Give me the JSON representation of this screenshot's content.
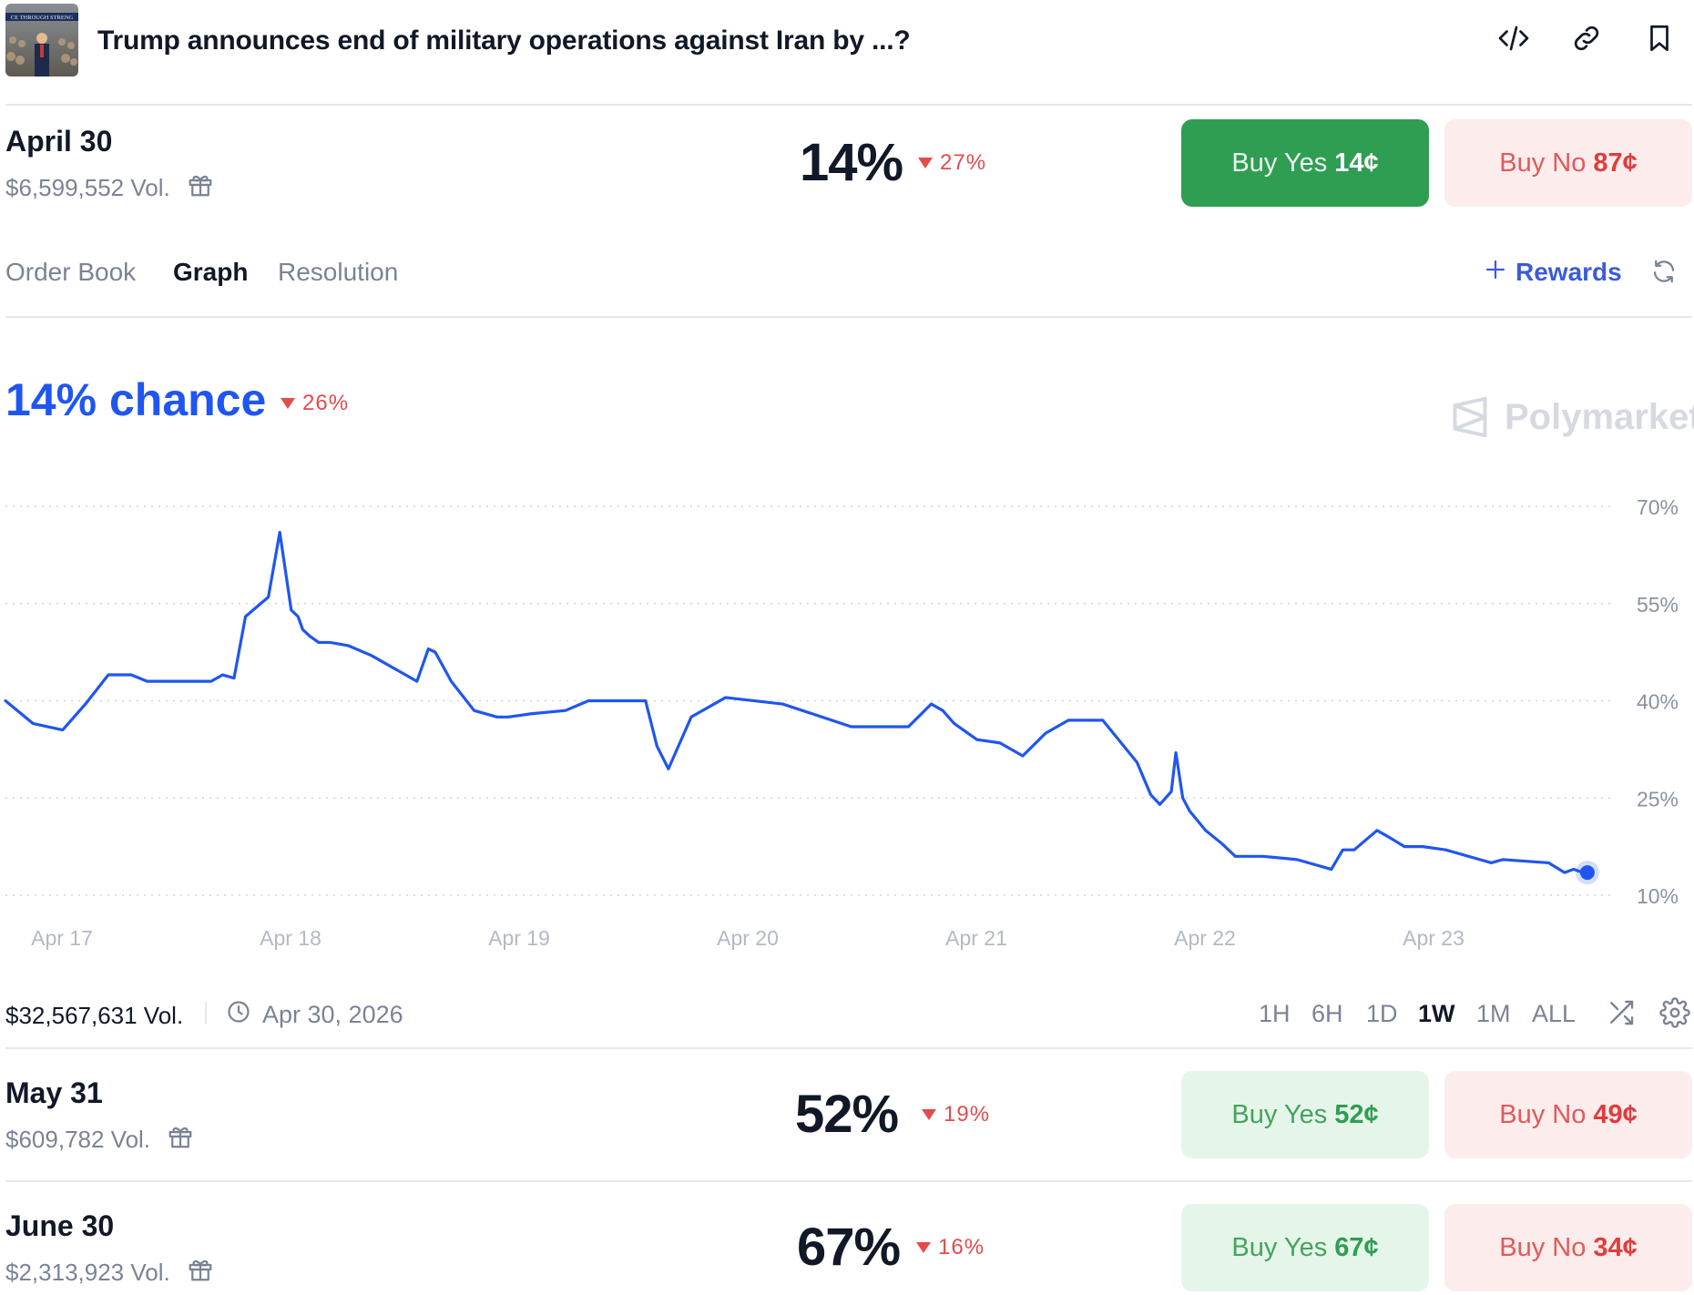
{
  "header": {
    "title": "Trump announces end of military operations against Iran by ...?",
    "thumbnail_caption": "CE THROUGH STRENG",
    "icons": [
      "code-embed-icon",
      "link-icon",
      "bookmark-icon"
    ]
  },
  "outcomes": [
    {
      "date": "April 30",
      "volume": "$6,599,552 Vol.",
      "percent": "14%",
      "change": "27%",
      "yes_label": "Buy Yes",
      "yes_price": "14¢",
      "no_label": "Buy No",
      "no_price": "87¢"
    },
    {
      "date": "May 31",
      "volume": "$609,782 Vol.",
      "percent": "52%",
      "change": "19%",
      "yes_label": "Buy Yes",
      "yes_price": "52¢",
      "no_label": "Buy No",
      "no_price": "49¢"
    },
    {
      "date": "June 30",
      "volume": "$2,313,923 Vol.",
      "percent": "67%",
      "change": "16%",
      "yes_label": "Buy Yes",
      "yes_price": "67¢",
      "no_label": "Buy No",
      "no_price": "34¢"
    }
  ],
  "tabs": [
    {
      "label": "Order Book",
      "active": false
    },
    {
      "label": "Graph",
      "active": true
    },
    {
      "label": "Resolution",
      "active": false
    }
  ],
  "rewards_label": "Rewards",
  "chance": {
    "text": "14% chance",
    "change": "26%"
  },
  "brand": "Polymarket",
  "stats": {
    "total_volume": "$32,567,631 Vol.",
    "end_date": "Apr 30, 2026"
  },
  "ranges": [
    {
      "label": "1H",
      "active": false
    },
    {
      "label": "6H",
      "active": false
    },
    {
      "label": "1D",
      "active": false
    },
    {
      "label": "1W",
      "active": true
    },
    {
      "label": "1M",
      "active": false
    },
    {
      "label": "ALL",
      "active": false
    }
  ],
  "colors": {
    "line": "#1f56f0",
    "buy_yes_solid": "#2f9e53",
    "buy_yes_light": "#e6f5ea",
    "buy_no_light": "#fcecec",
    "down_red": "#e24c4c",
    "rewards_blue": "#3b5bdb"
  },
  "chart_data": {
    "type": "line",
    "x_tick_labels": [
      "Apr 17",
      "Apr 18",
      "Apr 19",
      "Apr 20",
      "Apr 21",
      "Apr 22",
      "Apr 23"
    ],
    "y_tick_labels": [
      "70%",
      "55%",
      "40%",
      "25%",
      "10%"
    ],
    "y_ticks": [
      70,
      55,
      40,
      25,
      10
    ],
    "ylim": [
      10,
      70
    ],
    "xlim": [
      0,
      7.2
    ],
    "grid": "dotted horizontal",
    "series": [
      {
        "x": [
          0,
          0.12,
          0.25,
          0.35,
          0.45,
          0.55,
          0.62,
          0.7,
          0.9,
          0.95,
          1.0,
          1.05,
          1.15,
          1.2,
          1.25,
          1.28,
          1.3,
          1.33,
          1.37,
          1.42,
          1.5,
          1.6,
          1.8,
          1.85,
          1.88,
          1.95,
          2.05,
          2.15,
          2.2,
          2.3,
          2.45,
          2.55,
          2.65,
          2.8,
          2.85,
          2.9,
          3.0,
          3.15,
          3.4,
          3.7,
          3.95,
          4.05,
          4.1,
          4.15,
          4.25,
          4.35,
          4.45,
          4.55,
          4.65,
          4.8,
          4.95,
          5.01,
          5.05,
          5.1,
          5.12,
          5.15,
          5.18,
          5.25,
          5.32,
          5.38,
          5.5,
          5.65,
          5.8,
          5.85,
          5.9,
          6.0,
          6.05,
          6.12,
          6.2,
          6.3,
          6.45,
          6.5,
          6.55,
          6.75,
          6.82,
          6.86,
          6.9,
          6.92
        ],
        "values": [
          40,
          36.5,
          35.5,
          39.5,
          44,
          44,
          43,
          43,
          43,
          44,
          43.5,
          53,
          56,
          66,
          54,
          53,
          51,
          50,
          49,
          49,
          48.5,
          47,
          43,
          48,
          47.5,
          43,
          38.5,
          37.5,
          37.5,
          38,
          38.5,
          40,
          40,
          40,
          33,
          29.5,
          37.5,
          40.5,
          39.5,
          36,
          36,
          39.5,
          38.5,
          36.5,
          34,
          33.5,
          31.5,
          35,
          37,
          37,
          30.5,
          25.5,
          24,
          26,
          32,
          25,
          23,
          20,
          18,
          16,
          16,
          15.5,
          14,
          17,
          17,
          20,
          19,
          17.5,
          17.5,
          17,
          15.5,
          15,
          15.5,
          15,
          13.5,
          14,
          13.5,
          13.5
        ]
      }
    ]
  }
}
